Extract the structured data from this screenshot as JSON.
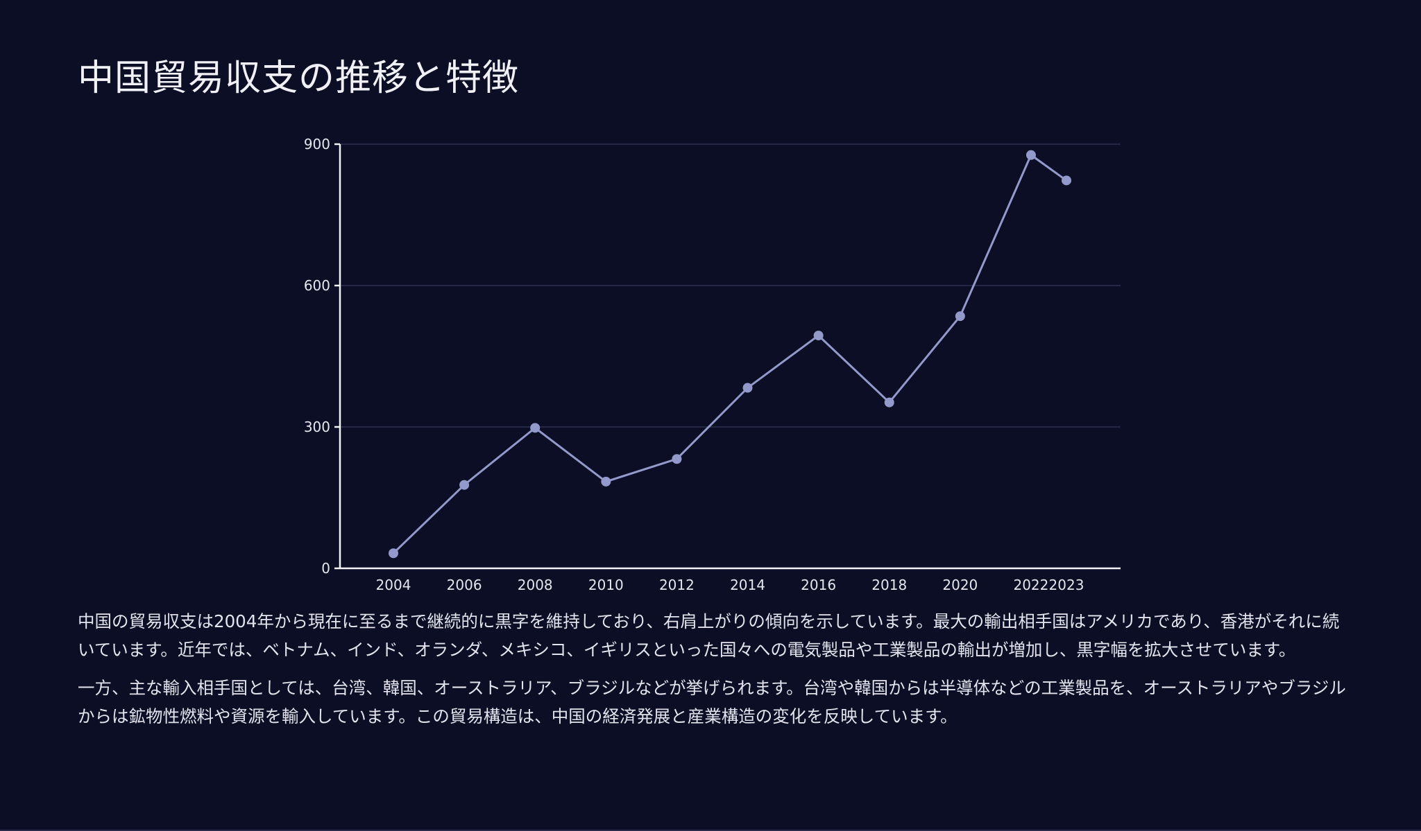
{
  "page": {
    "title": "中国貿易収支の推移と特徴",
    "paragraphs": [
      "中国の貿易収支は2004年から現在に至るまで継続的に黒字を維持しており、右肩上がりの傾向を示しています。最大の輸出相手国はアメリカであり、香港がそれに続いています。近年では、ベトナム、インド、オランダ、メキシコ、イギリスといった国々への電気製品や工業製品の輸出が増加し、黒字幅を拡大させています。",
      "一方、主な輸入相手国としては、台湾、韓国、オーストラリア、ブラジルなどが挙げられます。台湾や韓国からは半導体などの工業製品を、オーストラリアやブラジルからは鉱物性燃料や資源を輸入しています。この貿易構造は、中国の経済発展と産業構造の変化を反映しています。"
    ]
  },
  "colors": {
    "background": "#0b0e24",
    "series": "#9499cc",
    "text": "#e6e6ef"
  },
  "chart_data": {
    "type": "line",
    "title": "",
    "xlabel": "",
    "ylabel": "",
    "categories": [
      "2004",
      "2006",
      "2008",
      "2010",
      "2012",
      "2014",
      "2016",
      "2018",
      "2020",
      "2022",
      "2023"
    ],
    "series": [
      {
        "values": [
          32,
          177,
          298,
          184,
          232,
          383,
          494,
          352,
          535,
          877,
          823
        ]
      }
    ],
    "ylim": [
      0,
      900
    ],
    "yticks": [
      0,
      300,
      600,
      900
    ],
    "grid": true,
    "legend": "none"
  }
}
